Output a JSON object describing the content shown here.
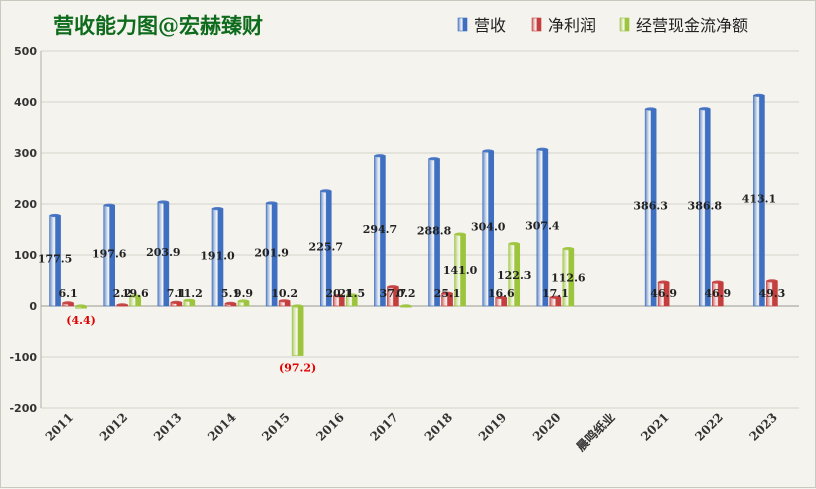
{
  "chart_data": {
    "type": "bar",
    "title": "营收能力图@宏赫臻财",
    "xlabel": "",
    "ylabel": "",
    "ylim": [
      -200,
      500
    ],
    "yticks": [
      -200,
      -100,
      0,
      100,
      200,
      300,
      400,
      500
    ],
    "grid": true,
    "legend_position": "top-right",
    "categories": [
      "2011",
      "2012",
      "2013",
      "2014",
      "2015",
      "2016",
      "2017",
      "2018",
      "2019",
      "2020",
      "晨鸣纸业",
      "2021",
      "2022",
      "2023"
    ],
    "series": [
      {
        "name": "营收",
        "color": "#3f6fc0",
        "values": [
          177.5,
          197.6,
          203.9,
          191.0,
          201.9,
          225.7,
          294.7,
          288.8,
          304.0,
          307.4,
          null,
          386.3,
          386.8,
          413.1
        ],
        "labels": [
          "177.5",
          "197.6",
          "203.9",
          "191.0",
          "201.9",
          "225.7",
          "294.7",
          "288.8",
          "304.0",
          "307.4",
          "",
          "386.3",
          "386.8",
          "413.1"
        ]
      },
      {
        "name": "净利润",
        "color": "#c43e3e",
        "values": [
          6.1,
          2.2,
          7.1,
          5.1,
          10.2,
          20.1,
          37.7,
          25.1,
          16.6,
          17.1,
          null,
          46.9,
          46.9,
          49.3
        ],
        "labels": [
          "6.1",
          "2.2",
          "7.1",
          "5.1",
          "10.2",
          "20.1",
          "37.7",
          "25.1",
          "16.6",
          "17.1",
          "",
          "46.9",
          "46.9",
          "49.3"
        ]
      },
      {
        "name": "经营现金流净额",
        "color": "#9cc43c",
        "values": [
          -4.4,
          19.6,
          11.2,
          9.9,
          -97.2,
          21.5,
          0.2,
          141.0,
          122.3,
          112.6,
          null,
          null,
          null,
          null
        ],
        "labels": [
          "(4.4)",
          "19.6",
          "11.2",
          "9.9",
          "(97.2)",
          "21.5",
          "0.2",
          "141.0",
          "122.3",
          "112.6",
          "",
          "",
          "",
          ""
        ]
      }
    ]
  }
}
